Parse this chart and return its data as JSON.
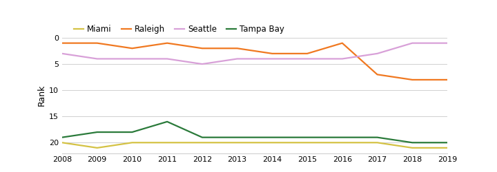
{
  "years": [
    2008,
    2009,
    2010,
    2011,
    2012,
    2013,
    2014,
    2015,
    2016,
    2017,
    2018,
    2019
  ],
  "miami": [
    20,
    21,
    20,
    20,
    20,
    20,
    20,
    20,
    20,
    20,
    21,
    21
  ],
  "raleigh": [
    1,
    1,
    2,
    1,
    2,
    2,
    3,
    3,
    1,
    7,
    8,
    8
  ],
  "seattle": [
    3,
    4,
    4,
    4,
    5,
    4,
    4,
    4,
    4,
    3,
    1,
    1
  ],
  "tampa_bay": [
    19,
    18,
    18,
    16,
    19,
    19,
    19,
    19,
    19,
    19,
    20,
    20
  ],
  "miami_color": "#d4c244",
  "raleigh_color": "#f07820",
  "seattle_color": "#d8a0d8",
  "tampa_bay_color": "#2a7a3a",
  "background_color": "#ffffff",
  "grid_color": "#d0d0d0",
  "ylabel": "Rank",
  "ylim_min": 0,
  "ylim_max": 22,
  "yticks": [
    0,
    5,
    10,
    15,
    20
  ],
  "legend_labels": [
    "Miami",
    "Raleigh",
    "Seattle",
    "Tampa Bay"
  ],
  "line_width": 1.6,
  "legend_square_size": 8,
  "legend_fontsize": 8.5,
  "axis_fontsize": 8,
  "ylabel_fontsize": 9
}
